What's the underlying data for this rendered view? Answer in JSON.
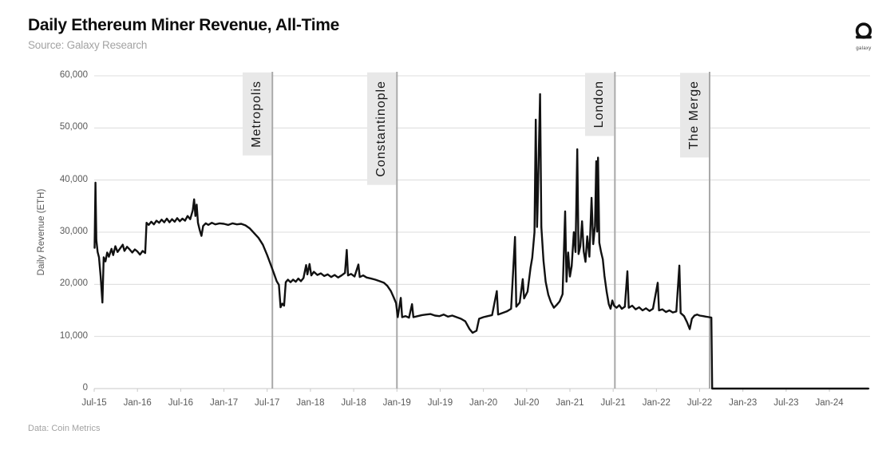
{
  "header": {
    "title": "Daily Ethereum Miner Revenue, All-Time",
    "subtitle": "Source: Galaxy Research"
  },
  "branding": {
    "logo_label": "galaxy"
  },
  "footer": {
    "data_source": "Data: Coin Metrics"
  },
  "chart_data": {
    "type": "line",
    "title": "Daily Ethereum Miner Revenue, All-Time",
    "xlabel": "",
    "ylabel": "Daily Revenue (ETH)",
    "ylim": [
      0,
      60000
    ],
    "x_numeric_range": [
      2015.5,
      2024.47
    ],
    "grid": "horizontal",
    "legend": "none",
    "line_color": "#111111",
    "gridline_color": "#dcdcdc",
    "event_line_color": "#a8a8a8",
    "event_box_color": "#e8e8e8",
    "y_ticks": [
      {
        "label": "0",
        "value": 0
      },
      {
        "label": "10,000",
        "value": 10000
      },
      {
        "label": "20,000",
        "value": 20000
      },
      {
        "label": "30,000",
        "value": 30000
      },
      {
        "label": "40,000",
        "value": 40000
      },
      {
        "label": "50,000",
        "value": 50000
      },
      {
        "label": "60,000",
        "value": 60000
      }
    ],
    "x_ticks": [
      {
        "label": "Jul-15",
        "value": 2015.5
      },
      {
        "label": "Jan-16",
        "value": 2016.0
      },
      {
        "label": "Jul-16",
        "value": 2016.5
      },
      {
        "label": "Jan-17",
        "value": 2017.0
      },
      {
        "label": "Jul-17",
        "value": 2017.5
      },
      {
        "label": "Jan-18",
        "value": 2018.0
      },
      {
        "label": "Jul-18",
        "value": 2018.5
      },
      {
        "label": "Jan-19",
        "value": 2019.0
      },
      {
        "label": "Jul-19",
        "value": 2019.5
      },
      {
        "label": "Jan-20",
        "value": 2020.0
      },
      {
        "label": "Jul-20",
        "value": 2020.5
      },
      {
        "label": "Jan-21",
        "value": 2021.0
      },
      {
        "label": "Jul-21",
        "value": 2021.5
      },
      {
        "label": "Jan-22",
        "value": 2022.0
      },
      {
        "label": "Jul-22",
        "value": 2022.5
      },
      {
        "label": "Jan-23",
        "value": 2023.0
      },
      {
        "label": "Jul-23",
        "value": 2023.5
      },
      {
        "label": "Jan-24",
        "value": 2024.0
      }
    ],
    "events": [
      {
        "label": "Metropolis",
        "x": 2017.56
      },
      {
        "label": "Constantinople",
        "x": 2019.0
      },
      {
        "label": "London",
        "x": 2021.52
      },
      {
        "label": "The Merge",
        "x": 2022.615
      }
    ],
    "series": [
      {
        "name": "Daily Ethereum Miner Revenue (ETH)",
        "points": [
          [
            2015.505,
            27000
          ],
          [
            2015.515,
            39500
          ],
          [
            2015.525,
            28500
          ],
          [
            2015.54,
            26200
          ],
          [
            2015.555,
            25200
          ],
          [
            2015.575,
            21500
          ],
          [
            2015.595,
            16500
          ],
          [
            2015.61,
            25200
          ],
          [
            2015.63,
            24400
          ],
          [
            2015.65,
            26100
          ],
          [
            2015.67,
            25300
          ],
          [
            2015.7,
            26800
          ],
          [
            2015.72,
            25600
          ],
          [
            2015.745,
            27300
          ],
          [
            2015.77,
            26200
          ],
          [
            2015.8,
            26900
          ],
          [
            2015.83,
            27600
          ],
          [
            2015.85,
            26400
          ],
          [
            2015.88,
            27200
          ],
          [
            2015.91,
            26700
          ],
          [
            2015.94,
            26100
          ],
          [
            2015.97,
            26700
          ],
          [
            2016.0,
            26300
          ],
          [
            2016.03,
            25700
          ],
          [
            2016.06,
            26400
          ],
          [
            2016.09,
            26000
          ],
          [
            2016.105,
            31800
          ],
          [
            2016.13,
            31400
          ],
          [
            2016.16,
            32000
          ],
          [
            2016.19,
            31500
          ],
          [
            2016.22,
            32200
          ],
          [
            2016.25,
            31800
          ],
          [
            2016.28,
            32400
          ],
          [
            2016.31,
            31900
          ],
          [
            2016.34,
            32600
          ],
          [
            2016.37,
            31900
          ],
          [
            2016.4,
            32500
          ],
          [
            2016.43,
            32000
          ],
          [
            2016.46,
            32700
          ],
          [
            2016.49,
            32100
          ],
          [
            2016.52,
            32600
          ],
          [
            2016.55,
            32200
          ],
          [
            2016.58,
            33100
          ],
          [
            2016.61,
            32500
          ],
          [
            2016.64,
            34200
          ],
          [
            2016.655,
            36300
          ],
          [
            2016.67,
            33100
          ],
          [
            2016.685,
            35300
          ],
          [
            2016.7,
            31800
          ],
          [
            2016.72,
            30400
          ],
          [
            2016.74,
            29300
          ],
          [
            2016.76,
            31200
          ],
          [
            2016.79,
            31700
          ],
          [
            2016.82,
            31400
          ],
          [
            2016.86,
            31800
          ],
          [
            2016.9,
            31500
          ],
          [
            2016.95,
            31700
          ],
          [
            2017.0,
            31600
          ],
          [
            2017.05,
            31400
          ],
          [
            2017.1,
            31700
          ],
          [
            2017.15,
            31500
          ],
          [
            2017.2,
            31600
          ],
          [
            2017.25,
            31300
          ],
          [
            2017.3,
            30700
          ],
          [
            2017.35,
            29800
          ],
          [
            2017.4,
            28900
          ],
          [
            2017.45,
            27600
          ],
          [
            2017.5,
            25600
          ],
          [
            2017.54,
            23800
          ],
          [
            2017.58,
            22000
          ],
          [
            2017.61,
            20600
          ],
          [
            2017.635,
            19900
          ],
          [
            2017.655,
            15600
          ],
          [
            2017.675,
            16300
          ],
          [
            2017.695,
            15900
          ],
          [
            2017.715,
            20400
          ],
          [
            2017.74,
            20900
          ],
          [
            2017.77,
            20400
          ],
          [
            2017.8,
            20900
          ],
          [
            2017.83,
            20500
          ],
          [
            2017.86,
            21100
          ],
          [
            2017.89,
            20600
          ],
          [
            2017.92,
            21200
          ],
          [
            2017.95,
            23700
          ],
          [
            2017.965,
            21900
          ],
          [
            2017.99,
            23900
          ],
          [
            2018.01,
            21700
          ],
          [
            2018.04,
            22400
          ],
          [
            2018.08,
            21800
          ],
          [
            2018.12,
            22100
          ],
          [
            2018.16,
            21600
          ],
          [
            2018.2,
            21900
          ],
          [
            2018.24,
            21400
          ],
          [
            2018.28,
            21800
          ],
          [
            2018.32,
            21300
          ],
          [
            2018.36,
            21700
          ],
          [
            2018.4,
            22200
          ],
          [
            2018.42,
            26600
          ],
          [
            2018.435,
            21700
          ],
          [
            2018.47,
            22000
          ],
          [
            2018.51,
            21500
          ],
          [
            2018.555,
            23800
          ],
          [
            2018.57,
            21400
          ],
          [
            2018.61,
            21700
          ],
          [
            2018.65,
            21300
          ],
          [
            2018.7,
            21100
          ],
          [
            2018.75,
            20900
          ],
          [
            2018.8,
            20600
          ],
          [
            2018.85,
            20300
          ],
          [
            2018.89,
            19700
          ],
          [
            2018.93,
            18700
          ],
          [
            2018.96,
            17600
          ],
          [
            2018.99,
            16400
          ],
          [
            2019.01,
            13700
          ],
          [
            2019.045,
            17400
          ],
          [
            2019.06,
            13700
          ],
          [
            2019.1,
            13900
          ],
          [
            2019.14,
            13600
          ],
          [
            2019.175,
            16200
          ],
          [
            2019.19,
            13700
          ],
          [
            2019.24,
            13900
          ],
          [
            2019.29,
            14100
          ],
          [
            2019.34,
            14200
          ],
          [
            2019.39,
            14300
          ],
          [
            2019.44,
            14000
          ],
          [
            2019.49,
            13900
          ],
          [
            2019.54,
            14200
          ],
          [
            2019.59,
            13800
          ],
          [
            2019.64,
            14000
          ],
          [
            2019.69,
            13700
          ],
          [
            2019.74,
            13400
          ],
          [
            2019.79,
            12900
          ],
          [
            2019.84,
            11400
          ],
          [
            2019.875,
            10700
          ],
          [
            2019.92,
            11100
          ],
          [
            2019.95,
            13400
          ],
          [
            2020.0,
            13700
          ],
          [
            2020.05,
            13900
          ],
          [
            2020.1,
            14100
          ],
          [
            2020.155,
            18700
          ],
          [
            2020.17,
            14200
          ],
          [
            2020.22,
            14500
          ],
          [
            2020.27,
            14800
          ],
          [
            2020.32,
            15300
          ],
          [
            2020.365,
            29100
          ],
          [
            2020.38,
            15700
          ],
          [
            2020.42,
            16500
          ],
          [
            2020.455,
            21000
          ],
          [
            2020.47,
            17300
          ],
          [
            2020.51,
            18600
          ],
          [
            2020.545,
            23200
          ],
          [
            2020.565,
            25100
          ],
          [
            2020.59,
            30000
          ],
          [
            2020.605,
            51600
          ],
          [
            2020.62,
            31000
          ],
          [
            2020.625,
            34000
          ],
          [
            2020.655,
            56500
          ],
          [
            2020.67,
            31000
          ],
          [
            2020.695,
            24500
          ],
          [
            2020.72,
            20500
          ],
          [
            2020.75,
            18000
          ],
          [
            2020.78,
            16600
          ],
          [
            2020.815,
            15500
          ],
          [
            2020.85,
            16100
          ],
          [
            2020.88,
            16700
          ],
          [
            2020.915,
            18100
          ],
          [
            2020.945,
            34000
          ],
          [
            2020.96,
            20500
          ],
          [
            2020.98,
            26100
          ],
          [
            2021.0,
            21500
          ],
          [
            2021.02,
            23500
          ],
          [
            2021.045,
            30000
          ],
          [
            2021.065,
            26200
          ],
          [
            2021.085,
            45900
          ],
          [
            2021.1,
            25800
          ],
          [
            2021.12,
            27300
          ],
          [
            2021.14,
            32100
          ],
          [
            2021.16,
            26300
          ],
          [
            2021.18,
            24300
          ],
          [
            2021.2,
            29200
          ],
          [
            2021.225,
            25300
          ],
          [
            2021.25,
            36600
          ],
          [
            2021.27,
            27700
          ],
          [
            2021.29,
            31200
          ],
          [
            2021.305,
            43600
          ],
          [
            2021.315,
            30100
          ],
          [
            2021.325,
            44300
          ],
          [
            2021.34,
            28000
          ],
          [
            2021.36,
            26200
          ],
          [
            2021.38,
            24800
          ],
          [
            2021.4,
            21600
          ],
          [
            2021.425,
            18600
          ],
          [
            2021.45,
            16200
          ],
          [
            2021.47,
            15300
          ],
          [
            2021.49,
            16900
          ],
          [
            2021.51,
            15900
          ],
          [
            2021.54,
            15500
          ],
          [
            2021.57,
            16000
          ],
          [
            2021.6,
            15300
          ],
          [
            2021.635,
            15700
          ],
          [
            2021.665,
            22500
          ],
          [
            2021.68,
            15500
          ],
          [
            2021.72,
            15900
          ],
          [
            2021.76,
            15200
          ],
          [
            2021.8,
            15600
          ],
          [
            2021.84,
            15000
          ],
          [
            2021.88,
            15400
          ],
          [
            2021.92,
            14900
          ],
          [
            2021.96,
            15300
          ],
          [
            2022.015,
            20300
          ],
          [
            2022.03,
            15000
          ],
          [
            2022.07,
            15200
          ],
          [
            2022.11,
            14700
          ],
          [
            2022.15,
            15000
          ],
          [
            2022.19,
            14600
          ],
          [
            2022.23,
            14800
          ],
          [
            2022.265,
            23600
          ],
          [
            2022.28,
            14500
          ],
          [
            2022.32,
            13900
          ],
          [
            2022.355,
            12700
          ],
          [
            2022.385,
            11400
          ],
          [
            2022.41,
            13400
          ],
          [
            2022.44,
            14000
          ],
          [
            2022.47,
            14200
          ],
          [
            2022.5,
            14000
          ],
          [
            2022.54,
            13900
          ],
          [
            2022.57,
            13800
          ],
          [
            2022.61,
            13700
          ],
          [
            2022.635,
            13600
          ],
          [
            2022.645,
            0
          ],
          [
            2024.45,
            0
          ]
        ]
      }
    ]
  }
}
